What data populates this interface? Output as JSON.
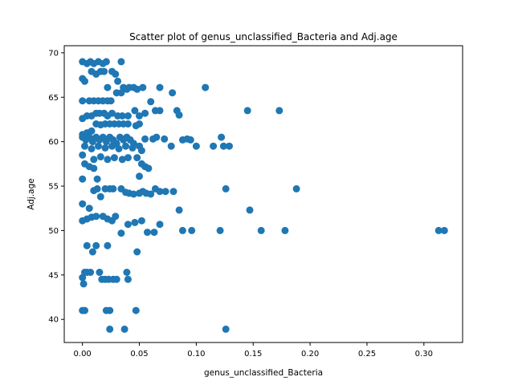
{
  "chart_data": {
    "type": "scatter",
    "title": "Scatter plot of genus_unclassified_Bacteria and Adj.age",
    "xlabel": "genus_unclassified_Bacteria",
    "ylabel": "Adj.age",
    "xlim": [
      -0.016,
      0.334
    ],
    "ylim": [
      37.4,
      70.8
    ],
    "xticks": [
      0.0,
      0.05,
      0.1,
      0.15,
      0.2,
      0.25,
      0.3
    ],
    "xtick_labels": [
      "0.00",
      "0.05",
      "0.10",
      "0.15",
      "0.20",
      "0.25",
      "0.30"
    ],
    "yticks": [
      40,
      45,
      50,
      55,
      60,
      65,
      70
    ],
    "ytick_labels": [
      "40",
      "45",
      "50",
      "55",
      "60",
      "65",
      "70"
    ],
    "grid": false,
    "marker_color": "#1f77b4",
    "points": [
      [
        0.0,
        69.0
      ],
      [
        0.004,
        68.8
      ],
      [
        0.007,
        69.0
      ],
      [
        0.01,
        68.8
      ],
      [
        0.014,
        69.0
      ],
      [
        0.018,
        68.8
      ],
      [
        0.021,
        69.0
      ],
      [
        0.034,
        69.0
      ],
      [
        0.0,
        67.1
      ],
      [
        0.002,
        66.8
      ],
      [
        0.008,
        67.9
      ],
      [
        0.012,
        67.6
      ],
      [
        0.016,
        67.9
      ],
      [
        0.019,
        67.9
      ],
      [
        0.026,
        67.9
      ],
      [
        0.029,
        67.6
      ],
      [
        0.031,
        66.8
      ],
      [
        0.022,
        66.1
      ],
      [
        0.0,
        64.6
      ],
      [
        0.006,
        64.6
      ],
      [
        0.01,
        64.6
      ],
      [
        0.014,
        64.6
      ],
      [
        0.018,
        64.6
      ],
      [
        0.022,
        64.6
      ],
      [
        0.025,
        64.6
      ],
      [
        0.03,
        65.5
      ],
      [
        0.034,
        65.5
      ],
      [
        0.036,
        66.1
      ],
      [
        0.039,
        65.9
      ],
      [
        0.041,
        66.1
      ],
      [
        0.045,
        66.1
      ],
      [
        0.048,
        65.9
      ],
      [
        0.053,
        66.1
      ],
      [
        0.06,
        64.5
      ],
      [
        0.068,
        66.1
      ],
      [
        0.079,
        65.5
      ],
      [
        0.108,
        66.1
      ],
      [
        0.0,
        62.6
      ],
      [
        0.004,
        62.9
      ],
      [
        0.008,
        62.9
      ],
      [
        0.012,
        63.2
      ],
      [
        0.015,
        63.2
      ],
      [
        0.019,
        63.2
      ],
      [
        0.022,
        62.9
      ],
      [
        0.026,
        63.2
      ],
      [
        0.031,
        62.9
      ],
      [
        0.035,
        62.9
      ],
      [
        0.04,
        62.9
      ],
      [
        0.046,
        63.5
      ],
      [
        0.05,
        62.9
      ],
      [
        0.055,
        63.2
      ],
      [
        0.064,
        63.5
      ],
      [
        0.068,
        63.5
      ],
      [
        0.083,
        63.5
      ],
      [
        0.085,
        63.0
      ],
      [
        0.145,
        63.5
      ],
      [
        0.173,
        63.5
      ],
      [
        0.0,
        60.8
      ],
      [
        0.004,
        61.0
      ],
      [
        0.008,
        61.2
      ],
      [
        0.012,
        62.0
      ],
      [
        0.016,
        61.9
      ],
      [
        0.02,
        62.0
      ],
      [
        0.024,
        62.0
      ],
      [
        0.028,
        62.0
      ],
      [
        0.032,
        62.0
      ],
      [
        0.036,
        62.0
      ],
      [
        0.04,
        62.0
      ],
      [
        0.047,
        61.8
      ],
      [
        0.05,
        62.0
      ],
      [
        0.0,
        60.5
      ],
      [
        0.003,
        60.2
      ],
      [
        0.006,
        60.5
      ],
      [
        0.009,
        60.0
      ],
      [
        0.012,
        60.5
      ],
      [
        0.015,
        60.2
      ],
      [
        0.018,
        60.5
      ],
      [
        0.021,
        60.0
      ],
      [
        0.024,
        60.5
      ],
      [
        0.027,
        60.2
      ],
      [
        0.03,
        59.8
      ],
      [
        0.033,
        60.5
      ],
      [
        0.036,
        60.2
      ],
      [
        0.039,
        60.5
      ],
      [
        0.042,
        60.2
      ],
      [
        0.045,
        59.8
      ],
      [
        0.05,
        59.5
      ],
      [
        0.055,
        60.3
      ],
      [
        0.062,
        60.3
      ],
      [
        0.065,
        60.5
      ],
      [
        0.072,
        60.3
      ],
      [
        0.078,
        59.5
      ],
      [
        0.088,
        60.2
      ],
      [
        0.092,
        60.3
      ],
      [
        0.095,
        60.2
      ],
      [
        0.1,
        59.5
      ],
      [
        0.115,
        59.5
      ],
      [
        0.122,
        60.5
      ],
      [
        0.124,
        59.5
      ],
      [
        0.129,
        59.5
      ],
      [
        0.002,
        59.5
      ],
      [
        0.008,
        59.2
      ],
      [
        0.014,
        59.5
      ],
      [
        0.02,
        59.3
      ],
      [
        0.026,
        59.5
      ],
      [
        0.032,
        59.2
      ],
      [
        0.038,
        59.5
      ],
      [
        0.044,
        59.3
      ],
      [
        0.052,
        59.0
      ],
      [
        0.0,
        58.5
      ],
      [
        0.01,
        58.0
      ],
      [
        0.016,
        58.3
      ],
      [
        0.022,
        58.0
      ],
      [
        0.028,
        58.2
      ],
      [
        0.035,
        58.0
      ],
      [
        0.04,
        58.2
      ],
      [
        0.048,
        58.2
      ],
      [
        0.052,
        57.5
      ],
      [
        0.055,
        57.2
      ],
      [
        0.058,
        57.0
      ],
      [
        0.0,
        55.8
      ],
      [
        0.002,
        57.5
      ],
      [
        0.006,
        57.2
      ],
      [
        0.01,
        57.0
      ],
      [
        0.013,
        55.8
      ],
      [
        0.05,
        56.1
      ],
      [
        0.0,
        53.0
      ],
      [
        0.006,
        52.5
      ],
      [
        0.01,
        54.5
      ],
      [
        0.013,
        54.7
      ],
      [
        0.016,
        53.8
      ],
      [
        0.02,
        54.7
      ],
      [
        0.024,
        54.7
      ],
      [
        0.027,
        54.7
      ],
      [
        0.034,
        54.7
      ],
      [
        0.038,
        54.3
      ],
      [
        0.041,
        54.2
      ],
      [
        0.045,
        54.1
      ],
      [
        0.05,
        54.2
      ],
      [
        0.053,
        54.4
      ],
      [
        0.056,
        54.2
      ],
      [
        0.06,
        54.1
      ],
      [
        0.064,
        54.7
      ],
      [
        0.068,
        54.4
      ],
      [
        0.073,
        54.4
      ],
      [
        0.08,
        54.4
      ],
      [
        0.126,
        54.7
      ],
      [
        0.188,
        54.7
      ],
      [
        0.0,
        51.1
      ],
      [
        0.004,
        51.3
      ],
      [
        0.008,
        51.5
      ],
      [
        0.012,
        51.6
      ],
      [
        0.018,
        51.6
      ],
      [
        0.022,
        51.3
      ],
      [
        0.026,
        51.1
      ],
      [
        0.029,
        51.6
      ],
      [
        0.034,
        49.7
      ],
      [
        0.04,
        50.7
      ],
      [
        0.046,
        50.9
      ],
      [
        0.052,
        51.1
      ],
      [
        0.057,
        49.8
      ],
      [
        0.063,
        49.8
      ],
      [
        0.068,
        50.7
      ],
      [
        0.085,
        52.3
      ],
      [
        0.088,
        50.0
      ],
      [
        0.096,
        50.0
      ],
      [
        0.121,
        50.0
      ],
      [
        0.147,
        52.3
      ],
      [
        0.157,
        50.0
      ],
      [
        0.178,
        50.0
      ],
      [
        0.313,
        50.0
      ],
      [
        0.318,
        50.0
      ],
      [
        0.004,
        48.3
      ],
      [
        0.012,
        48.3
      ],
      [
        0.009,
        47.6
      ],
      [
        0.022,
        48.3
      ],
      [
        0.048,
        47.6
      ],
      [
        0.0,
        44.7
      ],
      [
        0.001,
        44.0
      ],
      [
        0.002,
        45.3
      ],
      [
        0.004,
        45.3
      ],
      [
        0.007,
        45.3
      ],
      [
        0.015,
        45.3
      ],
      [
        0.017,
        44.5
      ],
      [
        0.02,
        44.5
      ],
      [
        0.023,
        44.5
      ],
      [
        0.027,
        44.5
      ],
      [
        0.03,
        44.5
      ],
      [
        0.039,
        45.3
      ],
      [
        0.04,
        44.5
      ],
      [
        0.0,
        41.0
      ],
      [
        0.002,
        41.0
      ],
      [
        0.021,
        41.0
      ],
      [
        0.024,
        41.0
      ],
      [
        0.047,
        41.0
      ],
      [
        0.024,
        38.9
      ],
      [
        0.037,
        38.9
      ],
      [
        0.126,
        38.9
      ]
    ]
  }
}
